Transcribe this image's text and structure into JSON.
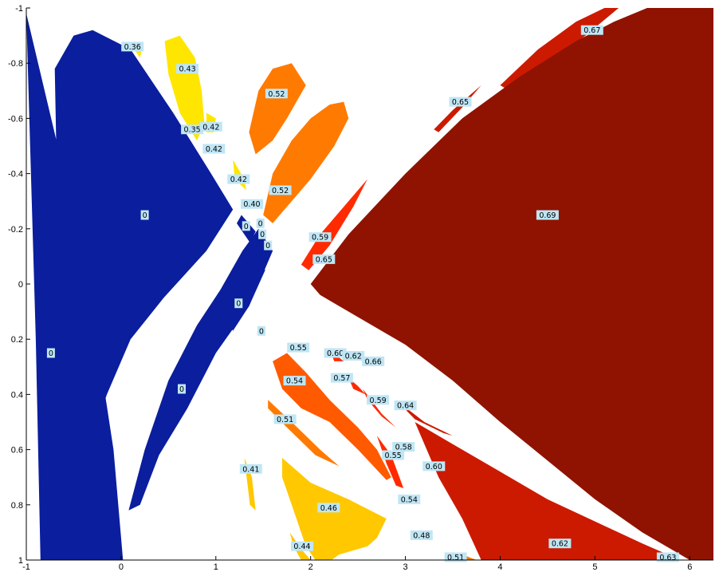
{
  "chart_data": {
    "type": "area",
    "title": "",
    "xlabel": "",
    "ylabel": "",
    "xlim": [
      -1,
      6.25
    ],
    "ylim": [
      1,
      -1
    ],
    "y_axis_reversed": true,
    "grid": false,
    "legend": "none",
    "x_ticks": [
      "-1",
      "0",
      "1",
      "2",
      "3",
      "4",
      "5",
      "6"
    ],
    "y_ticks": [
      "-1",
      "-0.8",
      "-0.6",
      "-0.4",
      "-0.2",
      "0",
      "0.2",
      "0.4",
      "0.6",
      "0.8",
      "1"
    ],
    "colors": {
      "blue": "#0a1e9e",
      "yellow_light": "#ffe600",
      "yellow": "#ffc800",
      "orange": "#ff7a00",
      "orange_dark": "#ff5a00",
      "red": "#ff2a00",
      "red_dark": "#cc1a00",
      "maroon": "#8f1300",
      "label_bg": "#bfe6f5"
    },
    "regions": [
      {
        "value": "0",
        "color": "blue",
        "points": [
          [
            -0.85,
            1.0
          ],
          [
            -0.9,
            0.2
          ],
          [
            -0.96,
            -0.5
          ],
          [
            -1.0,
            -0.98
          ],
          [
            -0.6,
            -0.4
          ],
          [
            -0.28,
            0.15
          ],
          [
            -0.08,
            0.6
          ],
          [
            0.02,
            1.0
          ]
        ]
      },
      {
        "value": "0",
        "color": "blue",
        "points": [
          [
            -0.7,
            -0.78
          ],
          [
            -0.5,
            -0.9
          ],
          [
            -0.3,
            -0.92
          ],
          [
            0.1,
            -0.85
          ],
          [
            0.55,
            -0.62
          ],
          [
            0.95,
            -0.4
          ],
          [
            1.18,
            -0.27
          ],
          [
            0.9,
            -0.12
          ],
          [
            0.45,
            0.05
          ],
          [
            0.1,
            0.2
          ],
          [
            -0.15,
            0.4
          ],
          [
            -0.35,
            0.6
          ],
          [
            -0.55,
            0.88
          ],
          [
            -0.6,
            1.0
          ]
        ]
      },
      {
        "value": "0",
        "color": "blue",
        "points": [
          [
            0.08,
            0.82
          ],
          [
            0.25,
            0.6
          ],
          [
            0.5,
            0.35
          ],
          [
            0.8,
            0.15
          ],
          [
            1.05,
            0.02
          ],
          [
            1.28,
            -0.12
          ],
          [
            1.45,
            -0.2
          ],
          [
            1.6,
            -0.12
          ],
          [
            1.35,
            0.08
          ],
          [
            1.0,
            0.25
          ],
          [
            0.7,
            0.45
          ],
          [
            0.4,
            0.62
          ],
          [
            0.2,
            0.8
          ]
        ]
      },
      {
        "value": "0",
        "color": "blue",
        "points": [
          [
            1.15,
            0.14
          ],
          [
            1.3,
            0.0
          ],
          [
            1.45,
            -0.1
          ],
          [
            1.52,
            -0.05
          ],
          [
            1.35,
            0.08
          ],
          [
            1.18,
            0.17
          ]
        ]
      },
      {
        "value": "0",
        "color": "blue",
        "points": [
          [
            1.27,
            -0.25
          ],
          [
            1.42,
            -0.19
          ],
          [
            1.36,
            -0.15
          ],
          [
            1.22,
            -0.22
          ]
        ]
      },
      {
        "value": "0.36",
        "color": "yellow_light",
        "points": [
          [
            0.15,
            -0.87
          ],
          [
            0.22,
            -0.85
          ],
          [
            0.2,
            -0.82
          ],
          [
            0.14,
            -0.85
          ]
        ]
      },
      {
        "value": "0.43",
        "color": "yellow_light",
        "points": [
          [
            0.46,
            -0.88
          ],
          [
            0.62,
            -0.9
          ],
          [
            0.78,
            -0.82
          ],
          [
            0.85,
            -0.7
          ],
          [
            0.88,
            -0.58
          ],
          [
            0.8,
            -0.52
          ],
          [
            0.62,
            -0.62
          ],
          [
            0.5,
            -0.76
          ]
        ]
      },
      {
        "value": "0.42",
        "color": "yellow_light",
        "points": [
          [
            0.9,
            -0.62
          ],
          [
            1.0,
            -0.6
          ],
          [
            0.98,
            -0.55
          ],
          [
            0.9,
            -0.55
          ]
        ]
      },
      {
        "value": "0.42",
        "color": "yellow_light",
        "points": [
          [
            1.18,
            -0.45
          ],
          [
            1.3,
            -0.38
          ],
          [
            1.32,
            -0.34
          ],
          [
            1.2,
            -0.38
          ]
        ]
      },
      {
        "value": "0.41",
        "color": "yellow",
        "points": [
          [
            1.3,
            0.63
          ],
          [
            1.38,
            0.7
          ],
          [
            1.42,
            0.82
          ],
          [
            1.36,
            0.8
          ]
        ]
      },
      {
        "value": "0.46",
        "color": "yellow",
        "points": [
          [
            1.7,
            0.63
          ],
          [
            2.0,
            0.72
          ],
          [
            2.4,
            0.78
          ],
          [
            2.8,
            0.85
          ],
          [
            2.7,
            0.92
          ],
          [
            2.6,
            0.95
          ],
          [
            2.3,
            0.98
          ],
          [
            2.22,
            1.0
          ],
          [
            2.05,
            1.0
          ],
          [
            1.95,
            0.95
          ],
          [
            1.85,
            0.85
          ],
          [
            1.7,
            0.7
          ]
        ]
      },
      {
        "value": "0.44",
        "color": "yellow",
        "points": [
          [
            1.78,
            0.9
          ],
          [
            1.9,
            0.96
          ],
          [
            2.0,
            1.0
          ],
          [
            1.9,
            1.0
          ],
          [
            1.82,
            0.95
          ]
        ]
      },
      {
        "value": "0.52",
        "color": "orange",
        "points": [
          [
            1.35,
            -0.55
          ],
          [
            1.45,
            -0.7
          ],
          [
            1.6,
            -0.78
          ],
          [
            1.8,
            -0.8
          ],
          [
            1.95,
            -0.72
          ],
          [
            1.75,
            -0.6
          ],
          [
            1.6,
            -0.52
          ],
          [
            1.42,
            -0.47
          ]
        ]
      },
      {
        "value": "0.52",
        "color": "orange",
        "points": [
          [
            1.5,
            -0.25
          ],
          [
            1.6,
            -0.4
          ],
          [
            1.8,
            -0.52
          ],
          [
            2.0,
            -0.6
          ],
          [
            2.2,
            -0.65
          ],
          [
            2.35,
            -0.66
          ],
          [
            2.4,
            -0.6
          ],
          [
            2.25,
            -0.5
          ],
          [
            2.0,
            -0.38
          ],
          [
            1.8,
            -0.3
          ],
          [
            1.6,
            -0.22
          ]
        ]
      },
      {
        "value": "0.54",
        "color": "orange_dark",
        "points": [
          [
            1.6,
            0.28
          ],
          [
            1.75,
            0.25
          ],
          [
            1.95,
            0.32
          ],
          [
            2.2,
            0.42
          ],
          [
            2.5,
            0.52
          ],
          [
            2.7,
            0.6
          ],
          [
            2.85,
            0.7
          ],
          [
            2.8,
            0.71
          ],
          [
            2.5,
            0.6
          ],
          [
            2.2,
            0.5
          ],
          [
            1.9,
            0.45
          ],
          [
            1.7,
            0.38
          ]
        ]
      },
      {
        "value": "0.51",
        "color": "orange",
        "points": [
          [
            1.55,
            0.42
          ],
          [
            1.8,
            0.5
          ],
          [
            2.1,
            0.6
          ],
          [
            2.3,
            0.66
          ],
          [
            2.05,
            0.62
          ],
          [
            1.75,
            0.52
          ],
          [
            1.55,
            0.45
          ]
        ]
      },
      {
        "value": "0.59",
        "color": "red",
        "points": [
          [
            1.9,
            -0.07
          ],
          [
            2.1,
            -0.18
          ],
          [
            2.35,
            -0.28
          ],
          [
            2.6,
            -0.38
          ],
          [
            2.45,
            -0.28
          ],
          [
            2.2,
            -0.14
          ],
          [
            1.98,
            -0.05
          ]
        ]
      },
      {
        "value": "0.59",
        "color": "red",
        "points": [
          [
            2.55,
            0.38
          ],
          [
            2.75,
            0.47
          ],
          [
            2.9,
            0.52
          ],
          [
            2.75,
            0.48
          ],
          [
            2.6,
            0.42
          ]
        ]
      },
      {
        "value": "0.57",
        "color": "red",
        "points": [
          [
            2.4,
            0.34
          ],
          [
            2.5,
            0.37
          ],
          [
            2.58,
            0.4
          ],
          [
            2.45,
            0.38
          ]
        ]
      },
      {
        "value": "0.60",
        "color": "red",
        "points": [
          [
            2.2,
            0.24
          ],
          [
            2.35,
            0.28
          ],
          [
            2.25,
            0.28
          ]
        ]
      },
      {
        "value": "0.58",
        "color": "red",
        "points": [
          [
            2.7,
            0.55
          ],
          [
            2.85,
            0.62
          ],
          [
            2.98,
            0.74
          ],
          [
            2.9,
            0.73
          ],
          [
            2.8,
            0.65
          ]
        ]
      },
      {
        "value": "0.64",
        "color": "red_dark",
        "points": [
          [
            2.9,
            0.42
          ],
          [
            3.2,
            0.5
          ],
          [
            3.5,
            0.55
          ],
          [
            3.4,
            0.54
          ],
          [
            3.1,
            0.49
          ]
        ]
      },
      {
        "value": "0.62",
        "color": "red_dark",
        "points": [
          [
            3.1,
            0.5
          ],
          [
            3.5,
            0.58
          ],
          [
            4.0,
            0.68
          ],
          [
            4.5,
            0.78
          ],
          [
            5.0,
            0.86
          ],
          [
            5.5,
            0.94
          ],
          [
            5.9,
            1.0
          ],
          [
            3.8,
            1.0
          ],
          [
            3.6,
            0.85
          ],
          [
            3.35,
            0.7
          ]
        ]
      },
      {
        "value": "0.51",
        "color": "orange",
        "points": [
          [
            3.6,
            0.98
          ],
          [
            3.75,
            1.0
          ],
          [
            3.62,
            1.0
          ]
        ]
      },
      {
        "value": "0.65",
        "color": "red_dark",
        "points": [
          [
            3.3,
            -0.56
          ],
          [
            3.5,
            -0.63
          ],
          [
            3.8,
            -0.72
          ],
          [
            3.6,
            -0.64
          ],
          [
            3.35,
            -0.55
          ]
        ]
      },
      {
        "value": "0.67",
        "color": "red_dark",
        "points": [
          [
            4.0,
            -0.72
          ],
          [
            4.4,
            -0.85
          ],
          [
            4.8,
            -0.95
          ],
          [
            5.1,
            -1.0
          ],
          [
            5.25,
            -1.0
          ],
          [
            4.9,
            -0.9
          ],
          [
            4.5,
            -0.8
          ],
          [
            4.1,
            -0.7
          ]
        ]
      },
      {
        "value": "0.69",
        "color": "maroon",
        "points": [
          [
            2.0,
            0.0
          ],
          [
            2.4,
            -0.18
          ],
          [
            3.0,
            -0.4
          ],
          [
            3.6,
            -0.6
          ],
          [
            4.2,
            -0.75
          ],
          [
            4.8,
            -0.88
          ],
          [
            5.2,
            -0.95
          ],
          [
            5.55,
            -1.0
          ],
          [
            6.25,
            -1.0
          ],
          [
            6.25,
            1.0
          ],
          [
            6.0,
            1.0
          ],
          [
            5.5,
            0.9
          ],
          [
            5.0,
            0.78
          ],
          [
            4.5,
            0.64
          ],
          [
            4.0,
            0.5
          ],
          [
            3.5,
            0.35
          ],
          [
            3.0,
            0.22
          ],
          [
            2.5,
            0.12
          ],
          [
            2.1,
            0.04
          ]
        ]
      }
    ],
    "labels": [
      {
        "text": "0.36",
        "x": 0.12,
        "y": -0.86
      },
      {
        "text": "0.43",
        "x": 0.7,
        "y": -0.78
      },
      {
        "text": "0.52",
        "x": 1.64,
        "y": -0.69
      },
      {
        "text": "0.65",
        "x": 3.58,
        "y": -0.66
      },
      {
        "text": "0.67",
        "x": 4.97,
        "y": -0.92
      },
      {
        "text": "0.35",
        "x": 0.75,
        "y": -0.56
      },
      {
        "text": "0.42",
        "x": 0.95,
        "y": -0.57
      },
      {
        "text": "0.42",
        "x": 0.98,
        "y": -0.49
      },
      {
        "text": "0.42",
        "x": 1.24,
        "y": -0.38
      },
      {
        "text": "0.52",
        "x": 1.68,
        "y": -0.34
      },
      {
        "text": "0.40",
        "x": 1.38,
        "y": -0.29
      },
      {
        "text": "0",
        "x": 0.25,
        "y": -0.25
      },
      {
        "text": "0",
        "x": 1.32,
        "y": -0.21
      },
      {
        "text": "0",
        "x": 1.47,
        "y": -0.22
      },
      {
        "text": "0",
        "x": 1.49,
        "y": -0.18
      },
      {
        "text": "0",
        "x": 1.55,
        "y": -0.14
      },
      {
        "text": "0.59",
        "x": 2.1,
        "y": -0.17
      },
      {
        "text": "0.65",
        "x": 2.14,
        "y": -0.09
      },
      {
        "text": "0.69",
        "x": 4.5,
        "y": -0.25
      },
      {
        "text": "0",
        "x": 1.24,
        "y": 0.07
      },
      {
        "text": "0",
        "x": 1.48,
        "y": 0.17
      },
      {
        "text": "0",
        "x": -0.74,
        "y": 0.25
      },
      {
        "text": "0.55",
        "x": 1.87,
        "y": 0.23
      },
      {
        "text": "0.60",
        "x": 2.26,
        "y": 0.25
      },
      {
        "text": "0.62",
        "x": 2.45,
        "y": 0.26
      },
      {
        "text": "0.66",
        "x": 2.66,
        "y": 0.28
      },
      {
        "text": "0.54",
        "x": 1.83,
        "y": 0.35
      },
      {
        "text": "0.57",
        "x": 2.33,
        "y": 0.34
      },
      {
        "text": "0",
        "x": 0.64,
        "y": 0.38
      },
      {
        "text": "0.59",
        "x": 2.71,
        "y": 0.42
      },
      {
        "text": "0.64",
        "x": 3.0,
        "y": 0.44
      },
      {
        "text": "0.51",
        "x": 1.73,
        "y": 0.49
      },
      {
        "text": "0.58",
        "x": 2.98,
        "y": 0.59
      },
      {
        "text": "0.55",
        "x": 2.87,
        "y": 0.62
      },
      {
        "text": "0.60",
        "x": 3.3,
        "y": 0.66
      },
      {
        "text": "0.41",
        "x": 1.37,
        "y": 0.67
      },
      {
        "text": "0.54",
        "x": 3.04,
        "y": 0.78
      },
      {
        "text": "0.46",
        "x": 2.19,
        "y": 0.81
      },
      {
        "text": "0.48",
        "x": 3.17,
        "y": 0.91
      },
      {
        "text": "0.62",
        "x": 4.63,
        "y": 0.94
      },
      {
        "text": "0.44",
        "x": 1.91,
        "y": 0.95
      },
      {
        "text": "0.51",
        "x": 3.53,
        "y": 0.99
      },
      {
        "text": "0.63",
        "x": 5.77,
        "y": 0.99
      }
    ]
  }
}
